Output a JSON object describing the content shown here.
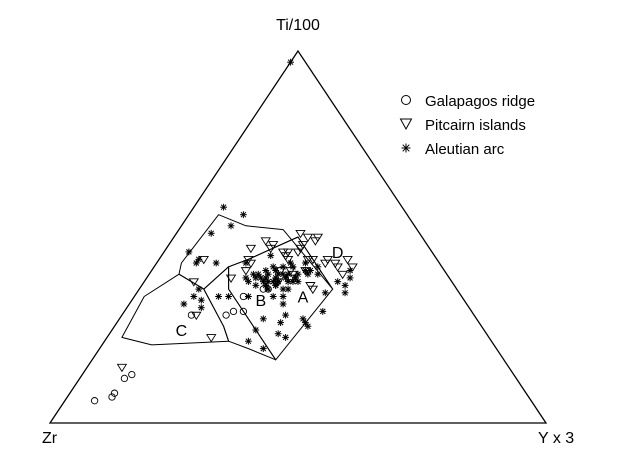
{
  "chart_data": {
    "type": "scatter",
    "subtype": "ternary",
    "vertices": {
      "top": "Ti/100",
      "left": "Zr",
      "right": "Y x 3"
    },
    "legend_position": "top-right",
    "legend": [
      {
        "name": "Galapagos ridge",
        "marker": "circle"
      },
      {
        "name": "Pitcairn islands",
        "marker": "triangle-down"
      },
      {
        "name": "Aleutian arc",
        "marker": "star"
      }
    ],
    "fields": [
      {
        "label": "A",
        "polygon": [
          [
            0.37,
            0.17
          ],
          [
            0.39,
            0.36
          ],
          [
            0.25,
            0.5
          ],
          [
            0.18,
            0.44
          ],
          [
            0.15,
            0.42
          ],
          [
            0.18,
            0.36
          ]
        ]
      },
      {
        "label": "B",
        "polygon": [
          [
            0.15,
            0.42
          ],
          [
            0.18,
            0.36
          ],
          [
            0.37,
            0.17
          ],
          [
            0.3,
            0.2
          ],
          [
            0.25,
            0.22
          ],
          [
            0.22,
            0.26
          ],
          [
            0.13,
            0.36
          ]
        ]
      },
      {
        "label": "C",
        "polygon": [
          [
            0.13,
            0.36
          ],
          [
            0.22,
            0.26
          ],
          [
            0.25,
            0.22
          ],
          [
            0.1,
            0.21
          ],
          [
            0.03,
            0.23
          ],
          [
            0.02,
            0.34
          ],
          [
            0.06,
            0.4
          ]
        ]
      },
      {
        "label": "D",
        "polygon": [
          [
            0.39,
            0.36
          ],
          [
            0.21,
            0.52
          ],
          [
            0.13,
            0.53
          ],
          [
            0.06,
            0.56
          ],
          [
            0.05,
            0.43
          ],
          [
            0.06,
            0.4
          ],
          [
            0.13,
            0.36
          ],
          [
            0.15,
            0.42
          ],
          [
            0.18,
            0.44
          ],
          [
            0.25,
            0.5
          ]
        ]
      }
    ],
    "field_labels": [
      {
        "label": "A",
        "at": [
          0.34,
          0.34
        ]
      },
      {
        "label": "B",
        "at": [
          0.26,
          0.33
        ]
      },
      {
        "label": "C",
        "at": [
          0.14,
          0.25
        ]
      },
      {
        "label": "D",
        "at": [
          0.35,
          0.46
        ]
      }
    ],
    "series": [
      {
        "name": "Galapagos ridge",
        "marker": "circle",
        "points": [
          [
            0.22,
            0.34
          ],
          [
            0.24,
            0.3
          ],
          [
            0.22,
            0.3
          ],
          [
            0.25,
            0.36
          ],
          [
            0.26,
            0.36
          ],
          [
            0.21,
            0.29
          ],
          [
            0.14,
            0.29
          ],
          [
            0.09,
            0.08
          ],
          [
            0.09,
            0.07
          ],
          [
            0.1,
            0.13
          ],
          [
            0.09,
            0.12
          ],
          [
            0.06,
            0.06
          ]
        ]
      },
      {
        "name": "Pitcairn islands",
        "marker": "triangle-down",
        "points": [
          [
            0.36,
            0.43
          ],
          [
            0.27,
            0.48
          ],
          [
            0.29,
            0.49
          ],
          [
            0.29,
            0.5
          ],
          [
            0.27,
            0.5
          ],
          [
            0.25,
            0.51
          ],
          [
            0.21,
            0.48
          ],
          [
            0.21,
            0.47
          ],
          [
            0.18,
            0.44
          ],
          [
            0.19,
            0.49
          ],
          [
            0.27,
            0.47
          ],
          [
            0.27,
            0.46
          ],
          [
            0.31,
            0.44
          ],
          [
            0.34,
            0.44
          ],
          [
            0.38,
            0.44
          ],
          [
            0.4,
            0.42
          ],
          [
            0.3,
            0.44
          ],
          [
            0.26,
            0.44
          ],
          [
            0.25,
            0.45
          ],
          [
            0.25,
            0.46
          ],
          [
            0.24,
            0.46
          ],
          [
            0.17,
            0.47
          ],
          [
            0.09,
            0.44
          ],
          [
            0.19,
            0.41
          ],
          [
            0.29,
            0.39
          ],
          [
            0.27,
            0.38
          ],
          [
            0.39,
            0.4
          ],
          [
            0.34,
            0.37
          ],
          [
            0.1,
            0.38
          ],
          [
            0.17,
            0.39
          ],
          [
            0.31,
            0.41
          ],
          [
            0.37,
            0.42
          ],
          [
            0.26,
            0.41
          ],
          [
            0.34,
            0.43
          ],
          [
            0.19,
            0.43
          ],
          [
            0.29,
            0.4
          ],
          [
            0.28,
            0.41
          ],
          [
            0.35,
            0.36
          ],
          [
            0.21,
            0.23
          ],
          [
            0.07,
            0.15
          ],
          [
            0.15,
            0.29
          ]
        ]
      },
      {
        "name": "Aleutian arc",
        "marker": "star",
        "points": [
          [
            0.06,
            0.58
          ],
          [
            0.11,
            0.56
          ],
          [
            0.1,
            0.53
          ],
          [
            0.07,
            0.51
          ],
          [
            0.05,
            0.46
          ],
          [
            0.18,
            0.43
          ],
          [
            0.08,
            0.43
          ],
          [
            0.12,
            0.43
          ],
          [
            0.08,
            0.44
          ],
          [
            0.21,
            0.4
          ],
          [
            0.23,
            0.41
          ],
          [
            0.22,
            0.4
          ],
          [
            0.24,
            0.4
          ],
          [
            0.26,
            0.42
          ],
          [
            0.24,
            0.42
          ],
          [
            0.27,
            0.37
          ],
          [
            0.25,
            0.37
          ],
          [
            0.26,
            0.39
          ],
          [
            0.24,
            0.38
          ],
          [
            0.27,
            0.38
          ],
          [
            0.27,
            0.4
          ],
          [
            0.3,
            0.4
          ],
          [
            0.31,
            0.41
          ],
          [
            0.32,
            0.4
          ],
          [
            0.3,
            0.39
          ],
          [
            0.29,
            0.38
          ],
          [
            0.31,
            0.38
          ],
          [
            0.3,
            0.36
          ],
          [
            0.29,
            0.36
          ],
          [
            0.3,
            0.34
          ],
          [
            0.25,
            0.38
          ],
          [
            0.26,
            0.38
          ],
          [
            0.27,
            0.37
          ],
          [
            0.27,
            0.38
          ],
          [
            0.22,
            0.39
          ],
          [
            0.23,
            0.39
          ],
          [
            0.24,
            0.39
          ],
          [
            0.28,
            0.4
          ],
          [
            0.3,
            0.38
          ],
          [
            0.26,
            0.4
          ],
          [
            0.28,
            0.42
          ],
          [
            0.23,
            0.34
          ],
          [
            0.11,
            0.32
          ],
          [
            0.14,
            0.33
          ],
          [
            0.12,
            0.34
          ],
          [
            0.15,
            0.31
          ],
          [
            0.17,
            0.34
          ],
          [
            0.19,
            0.34
          ],
          [
            0.12,
            0.36
          ],
          [
            0.23,
            0.37
          ],
          [
            0.25,
            0.41
          ],
          [
            0.38,
            0.35
          ],
          [
            0.28,
            0.34
          ],
          [
            0.31,
            0.32
          ],
          [
            0.2,
            0.39
          ],
          [
            0.21,
            0.38
          ],
          [
            0.32,
            0.41
          ],
          [
            0.28,
            0.39
          ],
          [
            0.26,
            0.36
          ],
          [
            0.39,
            0.38
          ],
          [
            0.27,
            0.43
          ],
          [
            0.22,
            0.45
          ],
          [
            0.3,
            0.43
          ],
          [
            0.33,
            0.42
          ],
          [
            0.34,
            0.4
          ],
          [
            0.41,
            0.39
          ],
          [
            0.4,
            0.41
          ],
          [
            0.41,
            0.37
          ],
          [
            0.42,
            0.35
          ],
          [
            0.4,
            0.3
          ],
          [
            0.38,
            0.27
          ],
          [
            0.36,
            0.23
          ],
          [
            0.37,
            0.28
          ],
          [
            0.33,
            0.29
          ],
          [
            0.33,
            0.27
          ],
          [
            0.29,
            0.28
          ],
          [
            0.29,
            0.25
          ],
          [
            0.34,
            0.24
          ],
          [
            0.29,
            0.22
          ],
          [
            0.39,
            0.26
          ],
          [
            0.33,
            0.2
          ],
          [
            0.0,
            0.97
          ]
        ]
      }
    ]
  }
}
